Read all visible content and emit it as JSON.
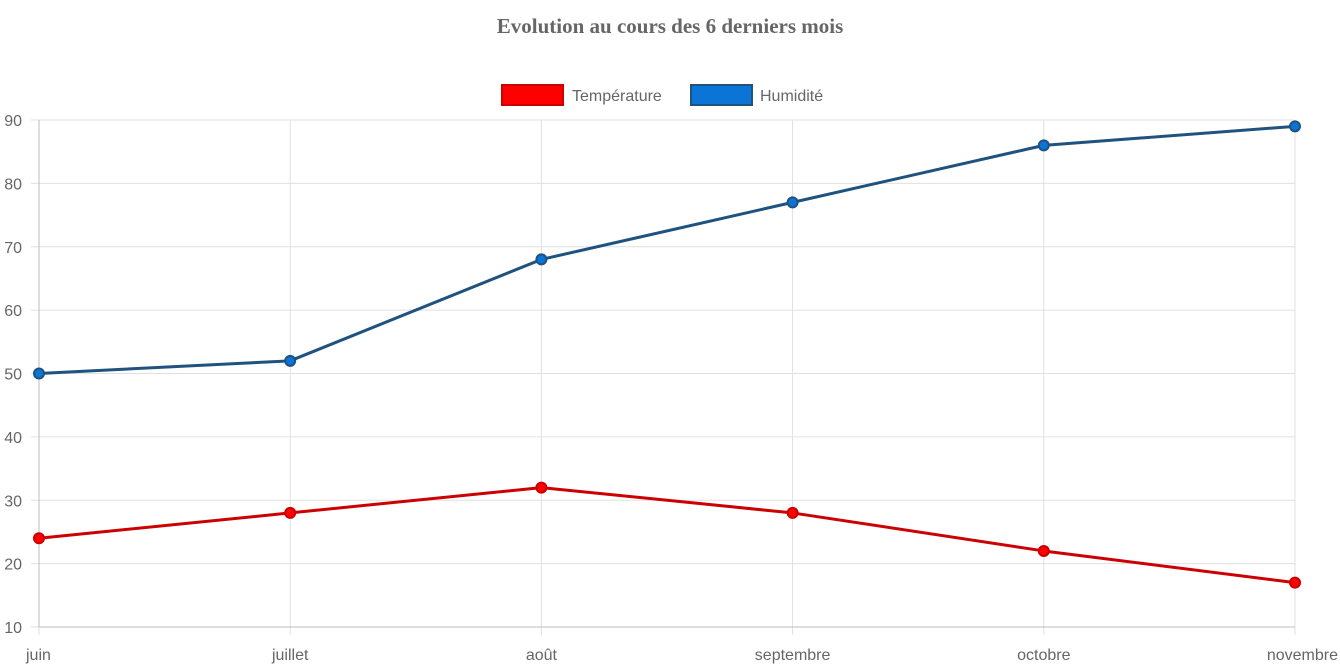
{
  "chart_data": {
    "type": "line",
    "title": "Evolution au cours des 6 derniers mois",
    "categories": [
      "juin",
      "juillet",
      "août",
      "septembre",
      "octobre",
      "novembre"
    ],
    "series": [
      {
        "name": "Température",
        "values": [
          24,
          28,
          32,
          28,
          22,
          17
        ],
        "color": "#cc0000",
        "fill": "#ff0000"
      },
      {
        "name": "Humidité",
        "values": [
          50,
          52,
          68,
          77,
          86,
          89
        ],
        "color": "#1f527e",
        "fill": "#0a75d6"
      }
    ],
    "y_ticks": [
      "10",
      "20",
      "30",
      "40",
      "50",
      "60",
      "70",
      "80",
      "90"
    ],
    "ylim": [
      10,
      90
    ],
    "grid": true,
    "legend_position": "top"
  }
}
